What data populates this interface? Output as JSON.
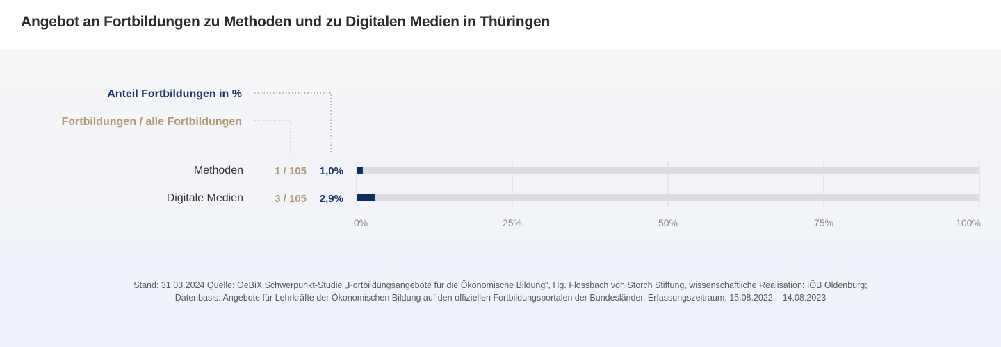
{
  "title": "Angebot an Fortbildungen zu Methoden und zu Digitalen Medien in Thüringen",
  "legend": {
    "share_label": "Anteil Fortbildungen  in %",
    "count_label": "Fortbildungen / alle Fortbildungen"
  },
  "colors": {
    "bar": "#0f2c63",
    "track": "#dcdcde",
    "count": "#b39a72",
    "share": "#1a3566",
    "grid": "#d8d8dc",
    "tick": "#8a8a8a"
  },
  "chart_data": {
    "type": "bar",
    "orientation": "horizontal",
    "title": "Angebot an Fortbildungen zu Methoden und zu Digitalen Medien in Thüringen",
    "categories": [
      "Methoden",
      "Digitale Medien"
    ],
    "values": [
      1.0,
      2.9
    ],
    "count_labels": [
      "1 / 105",
      "3 / 105"
    ],
    "value_labels": [
      "1,0%",
      "2,9%"
    ],
    "xlim": [
      0,
      100
    ],
    "xticks": [
      0,
      25,
      50,
      75,
      100
    ],
    "xtick_labels": [
      "0%",
      "25%",
      "50%",
      "75%",
      "100%"
    ],
    "grid": true
  },
  "footer": {
    "line1": "Stand: 31.03.2024 Quelle: OeBiX Schwerpunkt-Studie „Fortbildungsangebote für die Ökonomische Bildung“, Hg. Flossbach von Storch Stiftung, wissenschaftliche Realisation: IÖB Oldenburg;",
    "line2": "Datenbasis: Angebote für Lehrkräfte der Ökonomischen Bildung auf den offiziellen Fortbildungsportalen der Bundesländer, Erfassungszeitraum: 15.08.2022 – 14.08.2023"
  }
}
